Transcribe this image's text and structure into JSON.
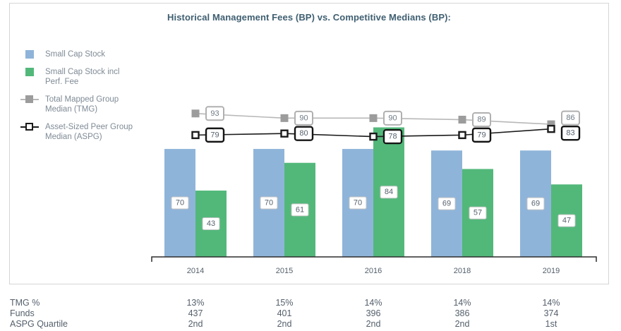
{
  "title": "Historical Management Fees (BP) vs. Competitive Medians (BP):",
  "colors": {
    "bar_blue": "#8fb4d9",
    "bar_green": "#52b87a",
    "tmg_marker": "#9c9c9c",
    "tmg_line": "#b8b8b8",
    "tmg_box_border": "#b0b0b0",
    "aspg_black": "#1a1a1a",
    "axis": "#2d2d2d",
    "value_text": "#56616d",
    "tmg_text": "#6e7a85",
    "label_border": "#c6c6c6",
    "title_text": "#3f5f71",
    "legend_text": "#7f8b96",
    "table_text": "#55606c"
  },
  "legend": {
    "items": [
      {
        "id": "small-cap-stock",
        "line1": "Small Cap Stock",
        "line2": ""
      },
      {
        "id": "small-cap-stock-incl-perf-fee",
        "line1": "Small Cap Stock incl",
        "line2": "Perf. Fee"
      },
      {
        "id": "tmg-median",
        "line1": "Total Mapped Group",
        "line2": "Median (TMG)"
      },
      {
        "id": "aspg-median",
        "line1": "Asset-Sized Peer Group",
        "line2": "Median (ASPG)"
      }
    ]
  },
  "chart_data": {
    "type": "bar",
    "title": "Historical Management Fees (BP) vs. Competitive Medians (BP):",
    "categories": [
      "2014",
      "2015",
      "2016",
      "2018",
      "2019"
    ],
    "series": [
      {
        "name": "Small Cap Stock",
        "type": "bar",
        "color_key": "bar_blue",
        "values": [
          70,
          70,
          70,
          69,
          69
        ]
      },
      {
        "name": "Small Cap Stock incl Perf. Fee",
        "type": "bar",
        "color_key": "bar_green",
        "values": [
          43,
          61,
          84,
          57,
          47
        ]
      },
      {
        "name": "Total Mapped Group Median (TMG)",
        "type": "line",
        "color_key": "tmg_marker",
        "values": [
          93,
          90,
          90,
          89,
          86
        ]
      },
      {
        "name": "Asset-Sized Peer Group Median (ASPG)",
        "type": "line",
        "color_key": "aspg_black",
        "values": [
          79,
          80,
          78,
          79,
          83
        ]
      }
    ],
    "xlabel": "",
    "ylabel": "",
    "ylim": [
      0,
      100
    ],
    "grid": false,
    "legend_position": "left",
    "data_labels": true
  },
  "table": {
    "rows": [
      {
        "label": "TMG %",
        "values": [
          "13%",
          "15%",
          "14%",
          "14%",
          "14%"
        ]
      },
      {
        "label": "Funds",
        "values": [
          "437",
          "401",
          "396",
          "386",
          "374"
        ]
      },
      {
        "label": "ASPG Quartile",
        "values": [
          "2nd",
          "2nd",
          "2nd",
          "2nd",
          "1st"
        ]
      }
    ]
  }
}
